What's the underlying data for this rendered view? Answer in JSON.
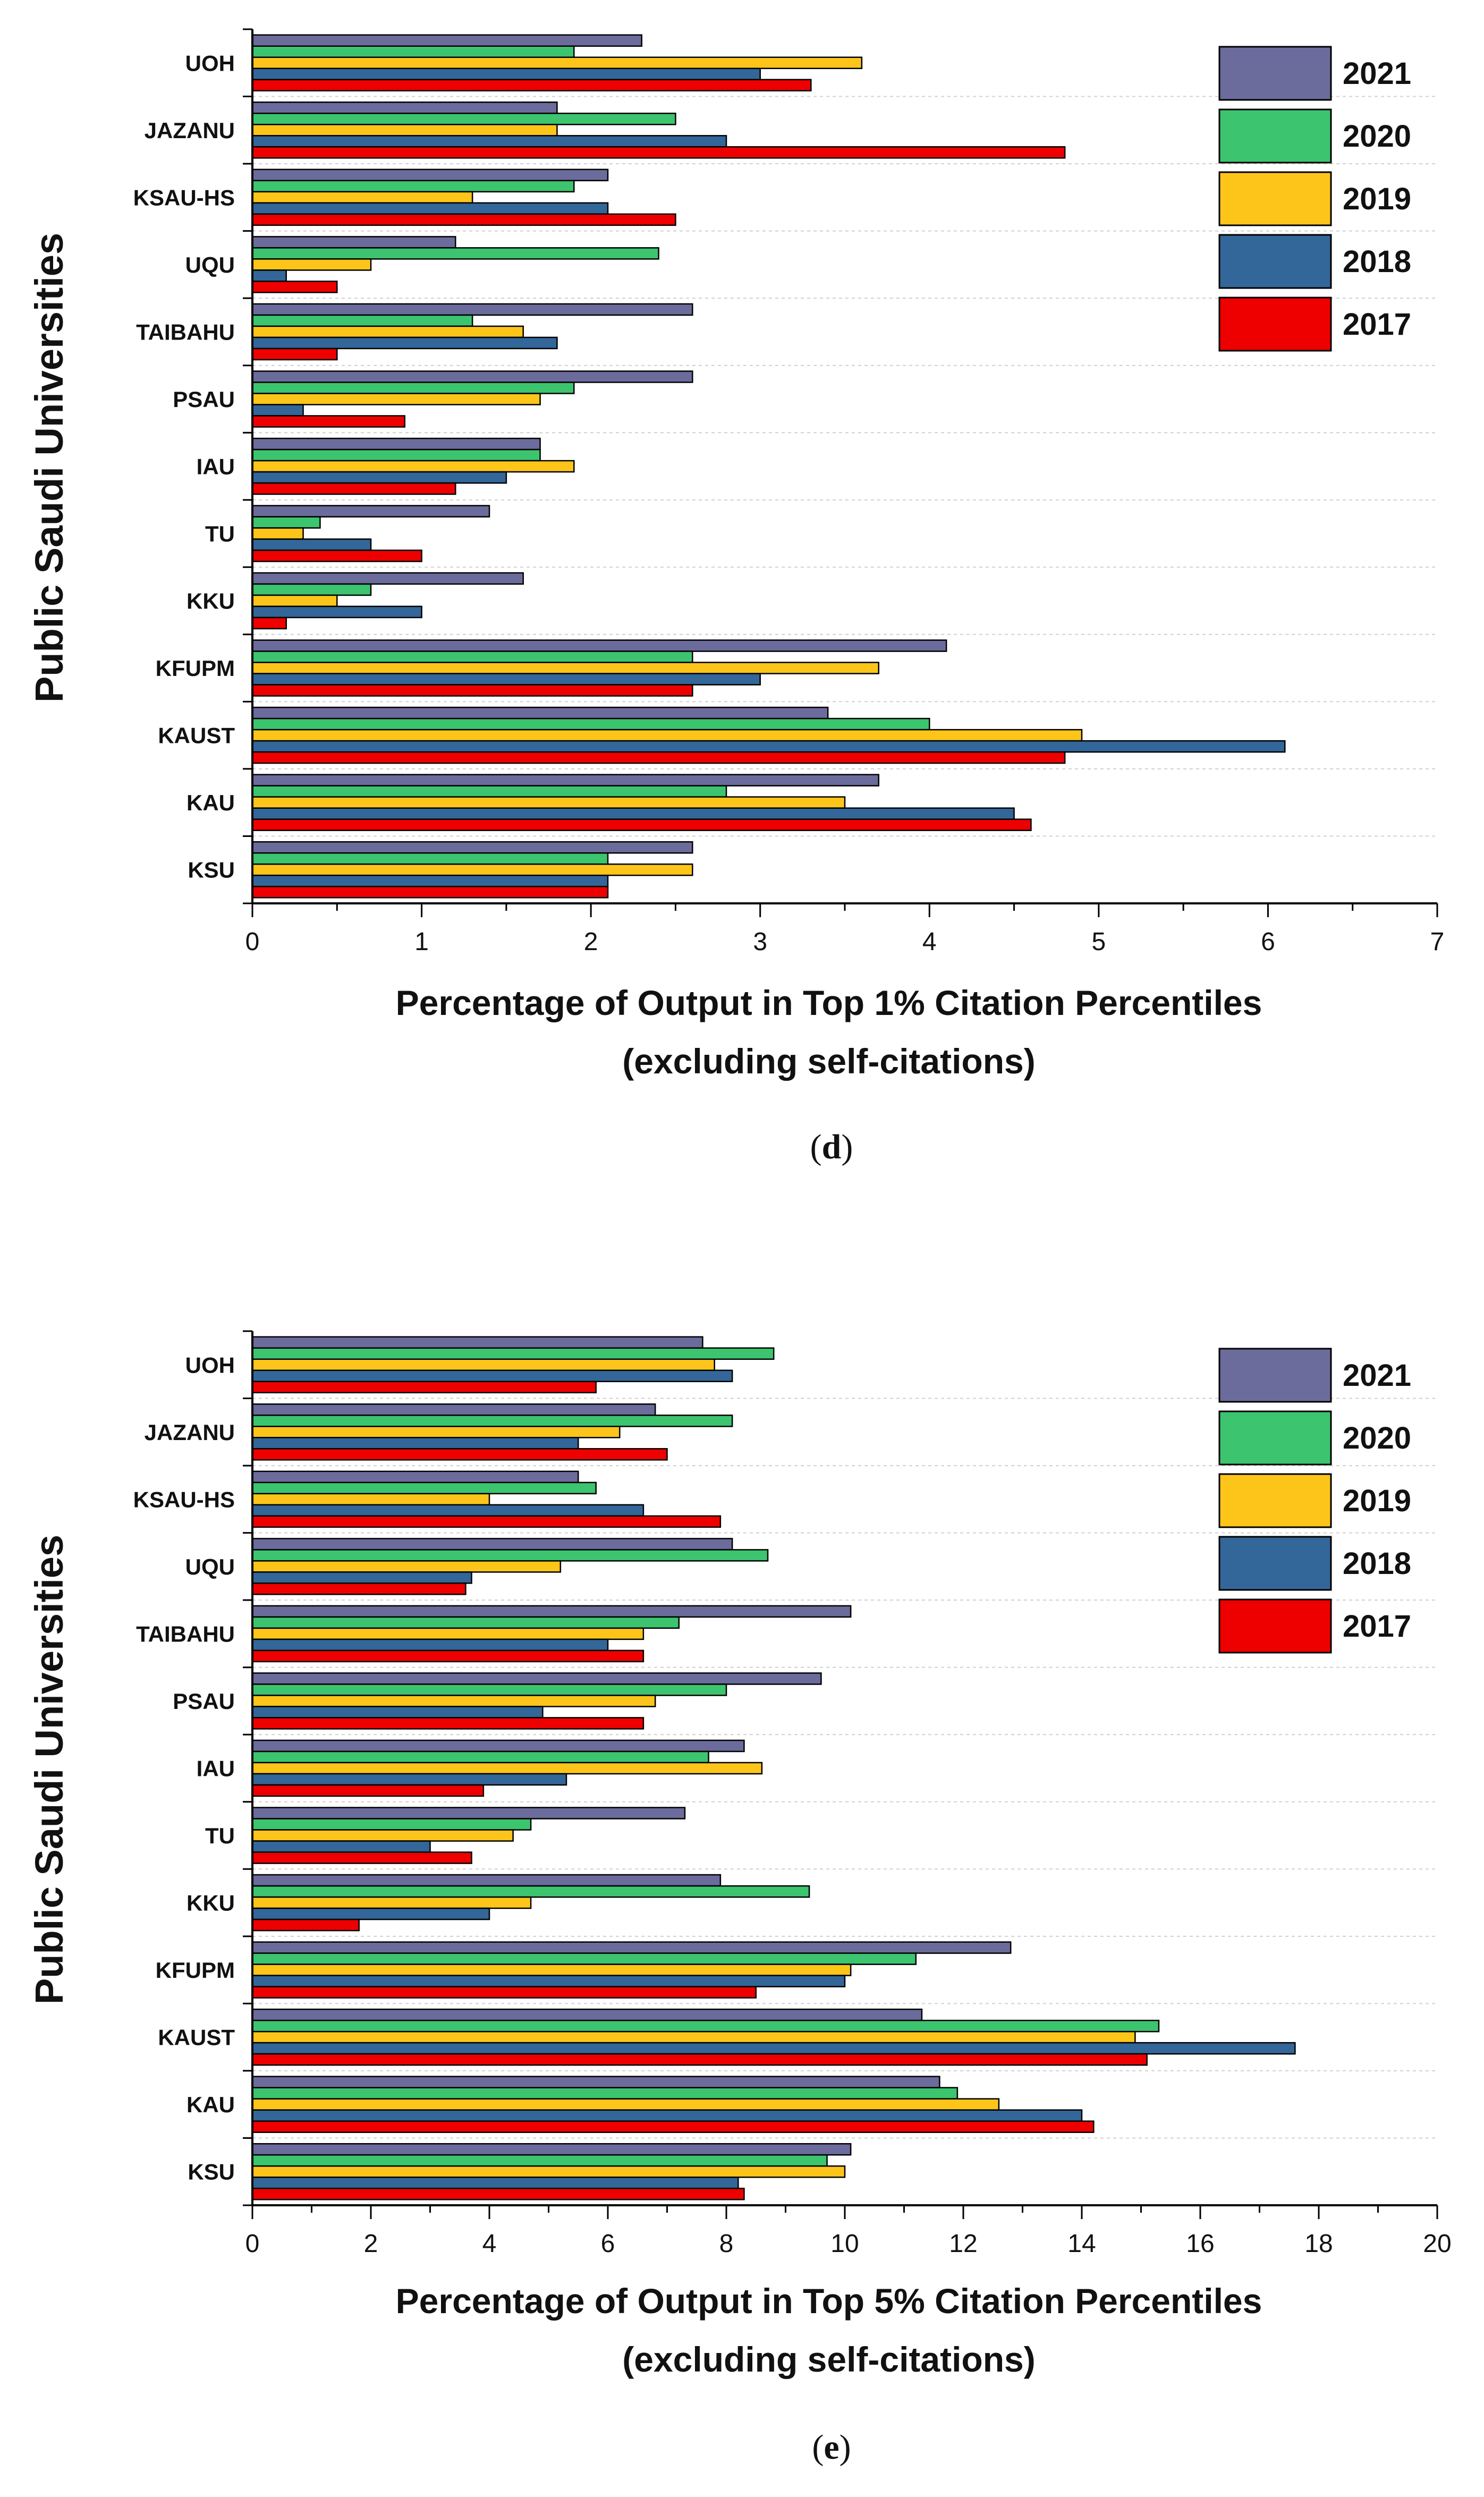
{
  "legend": [
    {
      "label": "2021",
      "color": "#6b6b9c"
    },
    {
      "label": "2020",
      "color": "#3cc46f"
    },
    {
      "label": "2019",
      "color": "#fdc51a"
    },
    {
      "label": "2018",
      "color": "#336699"
    },
    {
      "label": "2017",
      "color": "#ee0000"
    }
  ],
  "chart_data": [
    {
      "type": "bar",
      "orientation": "horizontal",
      "caption_open": "(",
      "caption_letter": "d",
      "caption_close": ")",
      "ylabel": "Public Saudi Universities",
      "xlabel_line1": "Percentage of Output in Top 1% Citation Percentiles",
      "xlabel_line2": "(excluding self-citations)",
      "xlim": [
        0,
        7
      ],
      "xticks": [
        "0",
        "1",
        "2",
        "3",
        "4",
        "5",
        "6",
        "7"
      ],
      "legend_position": "top-right",
      "categories": [
        "UOH",
        "JAZANU",
        "KSAU-HS",
        "UQU",
        "TAIBAHU",
        "PSAU",
        "IAU",
        "TU",
        "KKU",
        "KFUPM",
        "KAUST",
        "KAU",
        "KSU"
      ],
      "series": [
        {
          "name": "2021",
          "values": [
            2.3,
            1.8,
            2.1,
            1.2,
            2.6,
            2.6,
            1.7,
            1.4,
            1.6,
            4.1,
            3.4,
            3.7,
            2.6
          ]
        },
        {
          "name": "2020",
          "values": [
            1.9,
            2.5,
            1.9,
            2.4,
            1.3,
            1.9,
            1.7,
            0.4,
            0.7,
            2.6,
            4.0,
            2.8,
            2.1
          ]
        },
        {
          "name": "2019",
          "values": [
            3.6,
            1.8,
            1.3,
            0.7,
            1.6,
            1.7,
            1.9,
            0.3,
            0.5,
            3.7,
            4.9,
            3.5,
            2.6
          ]
        },
        {
          "name": "2018",
          "values": [
            3.0,
            2.8,
            2.1,
            0.2,
            1.8,
            0.3,
            1.5,
            0.7,
            1.0,
            3.0,
            6.1,
            4.5,
            2.1
          ]
        },
        {
          "name": "2017",
          "values": [
            3.3,
            4.8,
            2.5,
            0.5,
            0.5,
            0.9,
            1.2,
            1.0,
            0.2,
            2.6,
            4.8,
            4.6,
            2.1
          ]
        }
      ]
    },
    {
      "type": "bar",
      "orientation": "horizontal",
      "caption_open": "(",
      "caption_letter": "e",
      "caption_close": ")",
      "ylabel": "Public Saudi Universities",
      "xlabel_line1": "Percentage of Output in Top 5% Citation Percentiles",
      "xlabel_line2": "(excluding self-citations)",
      "xlim": [
        0,
        20
      ],
      "xticks": [
        "0",
        "2",
        "4",
        "6",
        "8",
        "10",
        "12",
        "14",
        "16",
        "18",
        "20"
      ],
      "legend_position": "top-right",
      "categories": [
        "UOH",
        "JAZANU",
        "KSAU-HS",
        "UQU",
        "TAIBAHU",
        "PSAU",
        "IAU",
        "TU",
        "KKU",
        "KFUPM",
        "KAUST",
        "KAU",
        "KSU"
      ],
      "series": [
        {
          "name": "2021",
          "values": [
            7.6,
            6.8,
            5.5,
            8.1,
            10.1,
            9.6,
            8.3,
            7.3,
            7.9,
            12.8,
            11.3,
            11.6,
            10.1
          ]
        },
        {
          "name": "2020",
          "values": [
            8.8,
            8.1,
            5.8,
            8.7,
            7.2,
            8.0,
            7.7,
            4.7,
            9.4,
            11.2,
            15.3,
            11.9,
            9.7
          ]
        },
        {
          "name": "2019",
          "values": [
            7.8,
            6.2,
            4.0,
            5.2,
            6.6,
            6.8,
            8.6,
            4.4,
            4.7,
            10.1,
            14.9,
            12.6,
            10.0
          ]
        },
        {
          "name": "2018",
          "values": [
            8.1,
            5.5,
            6.6,
            3.7,
            6.0,
            4.9,
            5.3,
            3.0,
            4.0,
            10.0,
            17.6,
            14.0,
            8.2
          ]
        },
        {
          "name": "2017",
          "values": [
            5.8,
            7.0,
            7.9,
            3.6,
            6.6,
            6.6,
            3.9,
            3.7,
            1.8,
            8.5,
            15.1,
            14.2,
            8.3
          ]
        }
      ]
    }
  ]
}
